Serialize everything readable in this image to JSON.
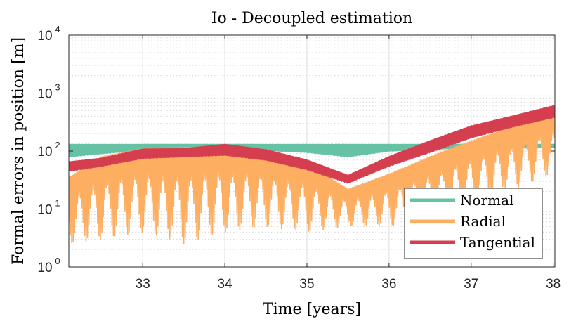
{
  "chart_data": {
    "type": "line",
    "title": "Io - Decoupled estimation",
    "xlabel": "Time [years]",
    "ylabel": "Formal errors in position [m]",
    "xlim": [
      32.1,
      38.02
    ],
    "ylim": [
      1,
      10000
    ],
    "yscale": "log",
    "grid": true,
    "xticks": [
      33,
      34,
      35,
      36,
      37,
      38
    ],
    "xtick_labels": [
      "33",
      "34",
      "35",
      "36",
      "37",
      "38"
    ],
    "yticks": [
      1,
      10,
      100,
      1000,
      10000
    ],
    "ytick_base": "10",
    "ytick_exponents": [
      "0",
      "1",
      "2",
      "3",
      "4"
    ],
    "legend": {
      "position": "bottom-right",
      "entries": [
        "Normal",
        "Radial",
        "Tangential"
      ]
    },
    "series": [
      {
        "name": "Normal",
        "color": "#66c2a5",
        "description": "Oscillates between envelope bounds",
        "x": [
          32.1,
          33.0,
          34.0,
          35.0,
          35.5,
          36.0,
          36.7,
          38.0
        ],
        "upper": [
          130,
          130,
          130,
          130,
          130,
          130,
          130,
          130
        ],
        "lower": [
          80,
          105,
          110,
          95,
          80,
          100,
          110,
          115
        ]
      },
      {
        "name": "Radial",
        "color": "#fdae61",
        "x": [
          32.1,
          32.5,
          33.0,
          33.5,
          34.0,
          34.5,
          35.0,
          35.5,
          36.0,
          36.5,
          37.0,
          37.5,
          38.0
        ],
        "upper": [
          35,
          80,
          110,
          115,
          120,
          95,
          60,
          22,
          40,
          80,
          150,
          260,
          450
        ],
        "lower": [
          2.5,
          3,
          4,
          2.5,
          4,
          5,
          4,
          5,
          5,
          7,
          12,
          22,
          40
        ]
      },
      {
        "name": "Tangential",
        "color": "#d53e4f",
        "x": [
          32.1,
          32.5,
          33.0,
          33.5,
          34.0,
          34.5,
          35.0,
          35.5,
          36.0,
          36.5,
          37.0,
          37.5,
          38.0
        ],
        "upper": [
          65,
          75,
          108,
          110,
          130,
          105,
          70,
          38,
          80,
          150,
          270,
          400,
          600
        ],
        "lower": [
          45,
          55,
          75,
          80,
          85,
          70,
          48,
          28,
          55,
          95,
          170,
          260,
          380
        ]
      }
    ]
  }
}
